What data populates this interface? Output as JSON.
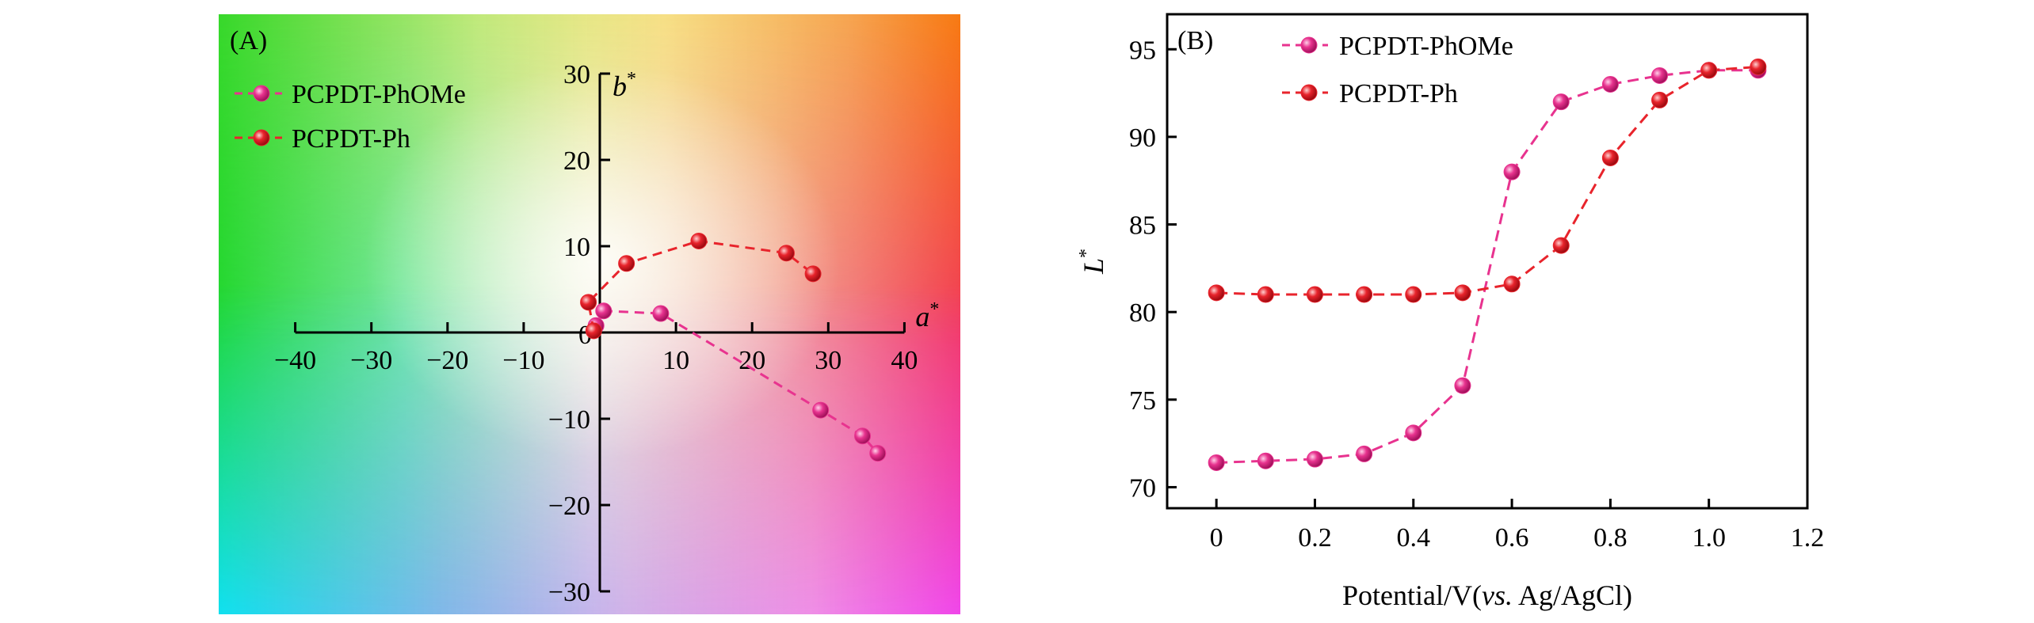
{
  "panels": {
    "a": {
      "label": "(A)"
    },
    "b": {
      "label": "(B)"
    }
  },
  "chart_data": [
    {
      "type": "scatter",
      "panel": "A",
      "title": "",
      "xlabel": "a*",
      "ylabel": "b*",
      "xlim": [
        -40,
        40
      ],
      "ylim": [
        -30,
        30
      ],
      "xticks": [
        -40,
        -30,
        -20,
        -10,
        0,
        10,
        20,
        30,
        40
      ],
      "yticks": [
        -30,
        -20,
        -10,
        0,
        10,
        20,
        30
      ],
      "xtick_labels": [
        "−40",
        "−30",
        "−20",
        "−10",
        "0",
        "10",
        "20",
        "30",
        "40"
      ],
      "ytick_labels": [
        "−30",
        "−20",
        "−10",
        "0",
        "10",
        "20",
        "30"
      ],
      "background": "CIE a*b* color space",
      "legend_position": "top-left",
      "grid": false,
      "series": [
        {
          "name": "PCPDT-PhOMe",
          "color": "#e8338f",
          "line": "dashed",
          "x": [
            -0.5,
            0.5,
            8.0,
            29.0,
            34.5,
            36.5
          ],
          "y": [
            0.8,
            2.5,
            2.2,
            -9.0,
            -12.0,
            -14.0
          ]
        },
        {
          "name": "PCPDT-Ph",
          "color": "#e8242c",
          "line": "dashed",
          "x": [
            -0.8,
            -1.5,
            3.5,
            13.0,
            24.5,
            28.0
          ],
          "y": [
            0.2,
            3.5,
            8.0,
            10.6,
            9.2,
            6.8
          ]
        }
      ]
    },
    {
      "type": "line",
      "panel": "B",
      "title": "",
      "xlabel": "Potential/V(vs. Ag/AgCl)",
      "xlabel_parts": [
        "Potential/V(",
        "vs.",
        " Ag/AgCl)"
      ],
      "ylabel": "L*",
      "xlim": [
        -0.1,
        1.2
      ],
      "ylim": [
        68.8,
        97
      ],
      "xticks": [
        0,
        0.2,
        0.4,
        0.6,
        0.8,
        1.0,
        1.2
      ],
      "yticks": [
        70,
        75,
        80,
        85,
        90,
        95
      ],
      "xtick_labels": [
        "0",
        "0.2",
        "0.4",
        "0.6",
        "0.8",
        "1.0",
        "1.2"
      ],
      "ytick_labels": [
        "70",
        "75",
        "80",
        "85",
        "90",
        "95"
      ],
      "legend_position": "top-left",
      "grid": false,
      "x": [
        0,
        0.1,
        0.2,
        0.3,
        0.4,
        0.5,
        0.6,
        0.7,
        0.8,
        0.9,
        1.0,
        1.1
      ],
      "series": [
        {
          "name": "PCPDT-PhOMe",
          "color": "#e8338f",
          "line": "dashed",
          "values": [
            71.4,
            71.5,
            71.6,
            71.9,
            73.1,
            75.8,
            88.0,
            92.0,
            93.0,
            93.5,
            93.8,
            93.8
          ]
        },
        {
          "name": "PCPDT-Ph",
          "color": "#e8242c",
          "line": "dashed",
          "values": [
            81.1,
            81.0,
            81.0,
            81.0,
            81.0,
            81.1,
            81.6,
            83.8,
            88.8,
            92.1,
            93.8,
            94.0
          ]
        }
      ]
    }
  ]
}
